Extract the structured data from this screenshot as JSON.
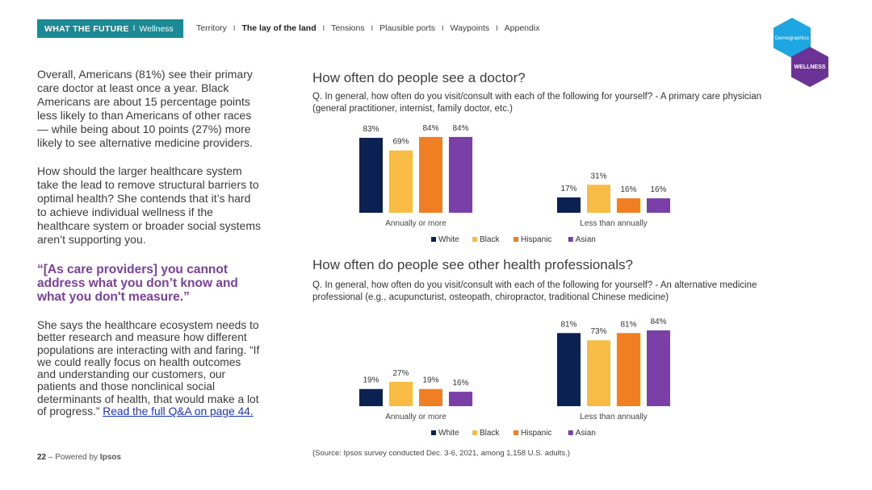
{
  "header": {
    "brand_title": "WHAT THE FUTURE",
    "brand_sep": "I",
    "brand_subtitle": "Wellness",
    "nav": [
      {
        "label": "Territory",
        "active": false
      },
      {
        "label": "The lay of the land",
        "active": true
      },
      {
        "label": "Tensions",
        "active": false
      },
      {
        "label": "Plausible ports",
        "active": false
      },
      {
        "label": "Waypoints",
        "active": false
      },
      {
        "label": "Appendix",
        "active": false
      }
    ],
    "nav_sep": "I"
  },
  "badges": {
    "demographics": "Demographics",
    "wellness": "WELLNESS",
    "demographics_color": "#1ea6e3",
    "wellness_color": "#6a3395"
  },
  "left": {
    "p1": "Overall, Americans (81%) see their primary care doctor at least once a year. Black Americans are about 15 percentage points less likely to than Americans of other races — while being about 10 points (27%) more likely to see alternative medicine providers.",
    "p2": "How should the larger healthcare system take the lead to remove structural barriers to optimal health? She contends that it’s hard to achieve individual wellness if the healthcare system or broader social systems aren’t supporting you.",
    "quote": "“[As care providers] you cannot address what you don’t know and what you don't measure.”",
    "p3": "She says the healthcare ecosystem needs to better research and measure how different populations are interacting with and faring. “If we could really focus on health outcomes and understanding our customers, our patients and those nonclinical social determinants of health, that would make a lot of progress.” ",
    "link": "Read the full Q&A on page 44."
  },
  "footer": {
    "page": "22",
    "dash": "–",
    "powered": "Powered by",
    "brand": "Ipsos"
  },
  "section1": {
    "title": "How often do people see a doctor?",
    "question": "Q. In general, how often do you visit/consult with each of the following for yourself? - A primary care physician (general practitioner, internist, family doctor, etc.)"
  },
  "section2": {
    "title": "How often do people see other health professionals?",
    "question": "Q. In general, how often do you visit/consult with each of the following for yourself? - An alternative medicine professional (e.g., acupuncturist, osteopath, chiropractor, traditional Chinese medicine)"
  },
  "source": "(Source: Ipsos survey conducted Dec. 3-6, 2021, among 1,158 U.S. adults.)",
  "chart_data": [
    {
      "type": "bar",
      "categories": [
        "Annually or more",
        "Less than annually"
      ],
      "series": [
        {
          "name": "White",
          "values": [
            83,
            17
          ],
          "color": "#0b2151"
        },
        {
          "name": "Black",
          "values": [
            69,
            31
          ],
          "color": "#f8bb44"
        },
        {
          "name": "Hispanic",
          "values": [
            84,
            16
          ],
          "color": "#f07e22"
        },
        {
          "name": "Asian",
          "values": [
            84,
            16
          ],
          "color": "#7b3fa8"
        }
      ],
      "value_suffix": "%",
      "ylim": [
        0,
        100
      ],
      "legend": "bottom",
      "grid": false
    },
    {
      "type": "bar",
      "categories": [
        "Annually or more",
        "Less than annually"
      ],
      "series": [
        {
          "name": "White",
          "values": [
            19,
            81
          ],
          "color": "#0b2151"
        },
        {
          "name": "Black",
          "values": [
            27,
            73
          ],
          "color": "#f8bb44"
        },
        {
          "name": "Hispanic",
          "values": [
            19,
            81
          ],
          "color": "#f07e22"
        },
        {
          "name": "Asian",
          "values": [
            16,
            84
          ],
          "color": "#7b3fa8"
        }
      ],
      "value_suffix": "%",
      "ylim": [
        0,
        100
      ],
      "legend": "bottom",
      "grid": false
    }
  ]
}
